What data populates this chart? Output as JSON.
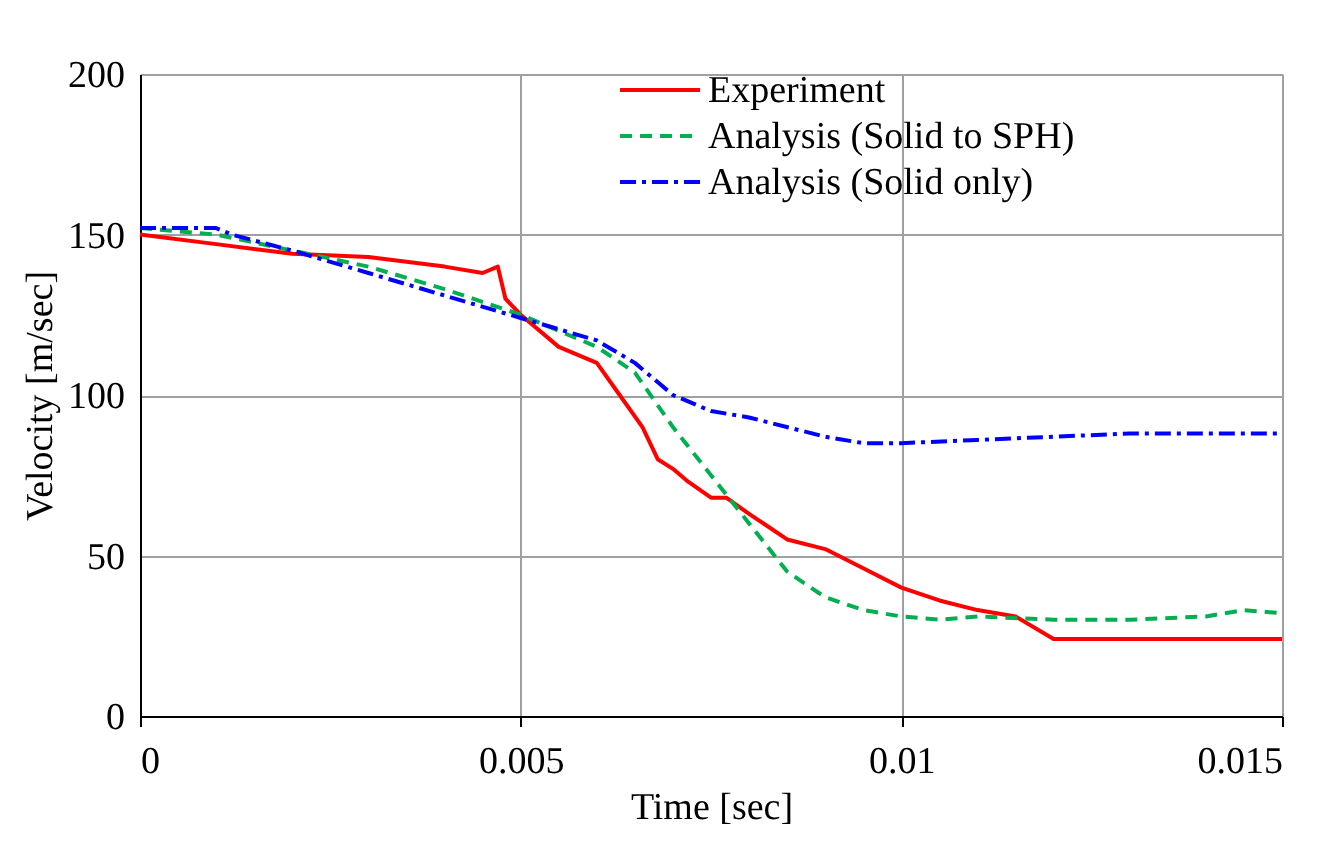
{
  "chart_data": {
    "type": "line",
    "xlabel": "Time [sec]",
    "ylabel": "Velocity  [m/sec]",
    "xlim": [
      0,
      0.015
    ],
    "xticks": [
      0,
      0.005,
      0.01,
      0.015
    ],
    "ylim": [
      0,
      200
    ],
    "yticks": [
      0,
      50,
      100,
      150,
      200
    ],
    "grid": true,
    "legend": "top right",
    "marker": "none",
    "series": [
      {
        "name": "Experiment",
        "color": "#ff0000",
        "line_style": "solid",
        "x": [
          0,
          0.001,
          0.002,
          0.003,
          0.004,
          0.0045,
          0.0047,
          0.0048,
          0.005,
          0.0055,
          0.006,
          0.0063,
          0.0066,
          0.0068,
          0.007,
          0.0072,
          0.0075,
          0.0077,
          0.008,
          0.0085,
          0.009,
          0.0095,
          0.01,
          0.0105,
          0.011,
          0.0115,
          0.012,
          0.015
        ],
        "values": [
          150,
          147,
          144,
          143,
          140,
          138,
          140,
          130,
          125,
          115,
          110,
          100,
          90,
          80,
          77,
          73,
          68,
          68,
          63,
          55,
          52,
          46,
          40,
          36,
          33,
          31,
          24,
          24
        ]
      },
      {
        "name": "Analysis (Solid to SPH)",
        "color": "#00b050",
        "line_style": "dashed",
        "x": [
          0,
          0.001,
          0.002,
          0.003,
          0.004,
          0.005,
          0.006,
          0.0065,
          0.007,
          0.0075,
          0.008,
          0.0085,
          0.009,
          0.0095,
          0.01,
          0.0105,
          0.011,
          0.012,
          0.013,
          0.014,
          0.0145,
          0.015
        ],
        "values": [
          152,
          150,
          145,
          140,
          133,
          125,
          115,
          107,
          90,
          75,
          60,
          45,
          37,
          33,
          31,
          30,
          31,
          30,
          30,
          31,
          33,
          32
        ]
      },
      {
        "name": "Analysis (Solid only)",
        "color": "#0000ff",
        "line_style": "dashdot",
        "x": [
          0,
          0.001,
          0.0012,
          0.002,
          0.003,
          0.004,
          0.005,
          0.006,
          0.0065,
          0.007,
          0.0075,
          0.008,
          0.009,
          0.0095,
          0.01,
          0.011,
          0.012,
          0.013,
          0.014,
          0.015
        ],
        "values": [
          152,
          152,
          150,
          145,
          138,
          131,
          124,
          117,
          110,
          100,
          95,
          93,
          87,
          85,
          85,
          86,
          87,
          88,
          88,
          88
        ]
      }
    ]
  }
}
